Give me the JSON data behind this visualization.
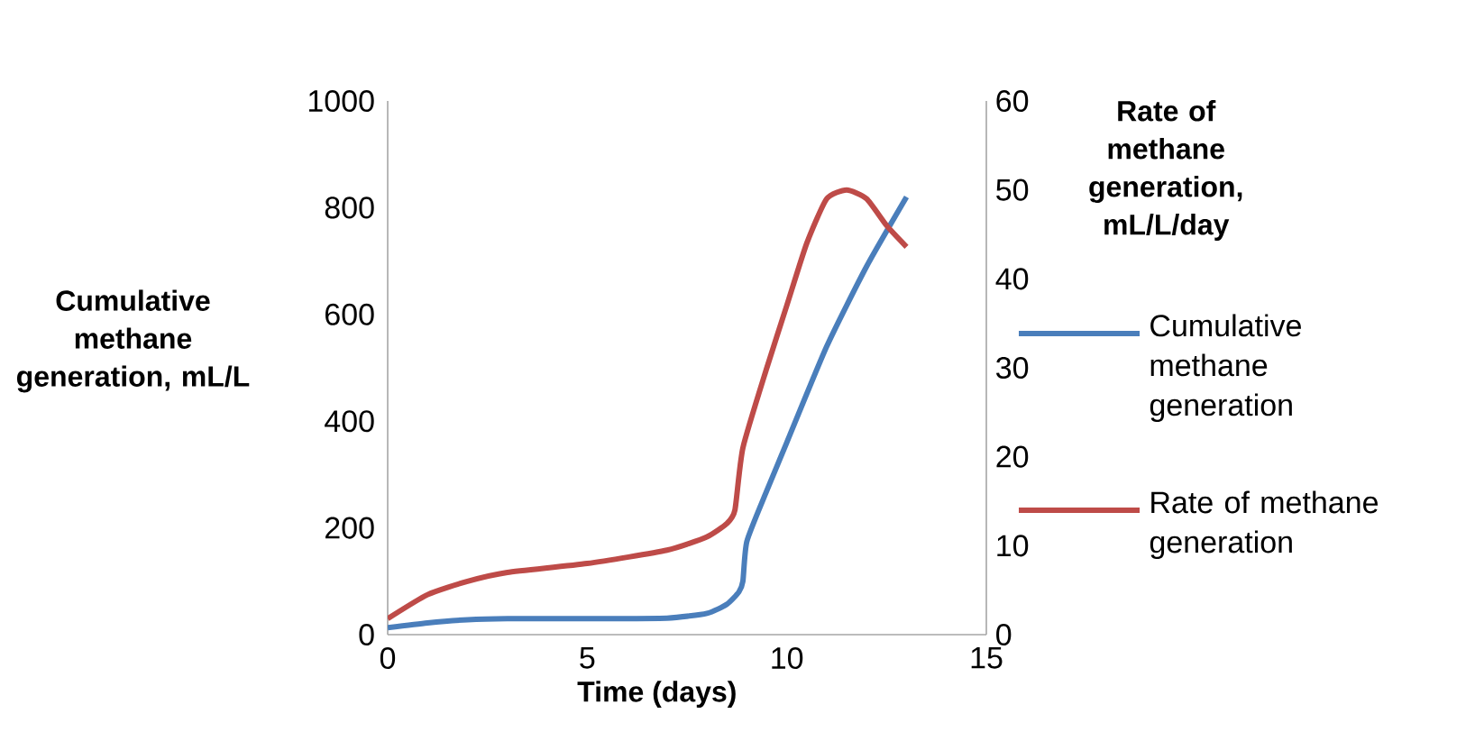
{
  "chart_data": {
    "type": "line",
    "xlabel": "Time (days)",
    "ylabel": "Cumulative methane generation, mL/L",
    "y2label": "Rate of methane generation, mL/L/day",
    "xlim": [
      0,
      15
    ],
    "xticks": [
      0,
      5,
      10,
      15
    ],
    "ylim": [
      0,
      1000
    ],
    "yticks": [
      0,
      200,
      400,
      600,
      800,
      1000
    ],
    "y2lim": [
      0,
      60
    ],
    "y2ticks": [
      0,
      10,
      20,
      30,
      40,
      50,
      60
    ],
    "legend": "right",
    "grid": false,
    "marker": "none",
    "line_style": "solid",
    "series": [
      {
        "name": "Cumulative methane generation",
        "color": "#4a7ebb",
        "axis": "y",
        "x": [
          0,
          1,
          2,
          3,
          5,
          7,
          8,
          8.5,
          8.8,
          8.9,
          9,
          9.5,
          10,
          11,
          12,
          13
        ],
        "values": [
          13,
          22,
          28,
          30,
          30,
          31,
          40,
          57,
          80,
          100,
          175,
          270,
          360,
          540,
          690,
          820
        ]
      },
      {
        "name": "Rate of methane generation",
        "color": "#be4b48",
        "axis": "y2",
        "x": [
          0,
          1,
          2,
          3,
          5,
          7,
          8,
          8.5,
          8.7,
          8.9,
          9.5,
          10,
          10.5,
          11,
          11.5,
          12,
          12.5,
          13
        ],
        "values": [
          1.8,
          4.5,
          6,
          7,
          8,
          9.5,
          11,
          12.5,
          14,
          21,
          30,
          37,
          44,
          49,
          50,
          49,
          46,
          43.6
        ]
      }
    ]
  }
}
